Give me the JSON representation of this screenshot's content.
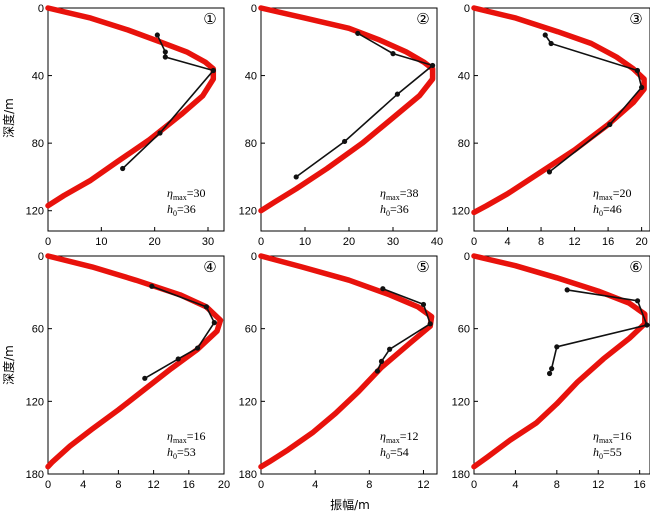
{
  "figure": {
    "y_axis_title": "深度/m",
    "x_axis_title": "振幅/m"
  },
  "chart_data": [
    {
      "type": "line",
      "panel_marker": "①",
      "xlim": [
        0,
        33
      ],
      "ylim": [
        0,
        132
      ],
      "y_inverted": true,
      "xticks": [
        "0",
        "10",
        "20",
        "30"
      ],
      "yticks": [
        "0",
        "40",
        "80",
        "120"
      ],
      "model_curve": {
        "color": "#e8120c",
        "points": [
          [
            0,
            0
          ],
          [
            8,
            6
          ],
          [
            15,
            13
          ],
          [
            21,
            20
          ],
          [
            26,
            26
          ],
          [
            29.5,
            32
          ],
          [
            31,
            36
          ],
          [
            31,
            42
          ],
          [
            29,
            52
          ],
          [
            25,
            63
          ],
          [
            19,
            78
          ],
          [
            13,
            91
          ],
          [
            8,
            102
          ],
          [
            3,
            111
          ],
          [
            0,
            117
          ]
        ]
      },
      "observed": {
        "color": "#111111",
        "points": [
          [
            20.5,
            16
          ],
          [
            22,
            26
          ],
          [
            22,
            29
          ],
          [
            31,
            37
          ],
          [
            21,
            74
          ],
          [
            14,
            95
          ]
        ]
      },
      "annotation": {
        "eta_symbol": "η",
        "eta_sub": "max",
        "eta_value": "=30",
        "h_symbol": "h",
        "h_sub": "0",
        "h_value": "=36"
      }
    },
    {
      "type": "line",
      "panel_marker": "②",
      "xlim": [
        0,
        40
      ],
      "ylim": [
        0,
        132
      ],
      "y_inverted": true,
      "xticks": [
        "0",
        "10",
        "20",
        "30",
        "40"
      ],
      "yticks": [
        "0",
        "40",
        "80",
        "120"
      ],
      "model_curve": {
        "color": "#e8120c",
        "points": [
          [
            0,
            0
          ],
          [
            10,
            6
          ],
          [
            20,
            12
          ],
          [
            27,
            19
          ],
          [
            33,
            26
          ],
          [
            37,
            32
          ],
          [
            39,
            36
          ],
          [
            39,
            42
          ],
          [
            36,
            52
          ],
          [
            30,
            65
          ],
          [
            23,
            80
          ],
          [
            15,
            95
          ],
          [
            8,
            107
          ],
          [
            3,
            115
          ],
          [
            0,
            120
          ]
        ]
      },
      "observed": {
        "color": "#111111",
        "points": [
          [
            22,
            15
          ],
          [
            30,
            27
          ],
          [
            39,
            34
          ],
          [
            31,
            51
          ],
          [
            19,
            79
          ],
          [
            8,
            100
          ]
        ]
      },
      "annotation": {
        "eta_symbol": "η",
        "eta_sub": "max",
        "eta_value": "=38",
        "h_symbol": "h",
        "h_sub": "0",
        "h_value": "=36"
      }
    },
    {
      "type": "line",
      "panel_marker": "③",
      "xlim": [
        0,
        21
      ],
      "ylim": [
        0,
        132
      ],
      "y_inverted": true,
      "xticks": [
        "0",
        "4",
        "8",
        "12",
        "16",
        "20"
      ],
      "yticks": [
        "0",
        "40",
        "80",
        "120"
      ],
      "model_curve": {
        "color": "#e8120c",
        "points": [
          [
            0,
            0
          ],
          [
            5,
            6
          ],
          [
            10,
            14
          ],
          [
            14,
            21
          ],
          [
            17,
            29
          ],
          [
            19,
            36
          ],
          [
            20.3,
            42
          ],
          [
            20.3,
            48
          ],
          [
            19,
            56
          ],
          [
            16,
            69
          ],
          [
            12,
            84
          ],
          [
            8,
            97
          ],
          [
            4,
            110
          ],
          [
            1.5,
            117
          ],
          [
            0,
            121
          ]
        ]
      },
      "observed": {
        "color": "#111111",
        "points": [
          [
            8.5,
            16
          ],
          [
            9.2,
            21
          ],
          [
            19.5,
            37
          ],
          [
            20,
            47
          ],
          [
            16.2,
            69
          ],
          [
            9,
            97
          ]
        ]
      },
      "annotation": {
        "eta_symbol": "η",
        "eta_sub": "max",
        "eta_value": "=20",
        "h_symbol": "h",
        "h_sub": "0",
        "h_value": "=46"
      }
    },
    {
      "type": "line",
      "panel_marker": "④",
      "xlim": [
        0,
        20
      ],
      "ylim": [
        0,
        180
      ],
      "y_inverted": true,
      "xticks": [
        "0",
        "4",
        "8",
        "12",
        "16",
        "20"
      ],
      "yticks": [
        "0",
        "60",
        "120",
        "180"
      ],
      "model_curve": {
        "color": "#e8120c",
        "points": [
          [
            0,
            0
          ],
          [
            5,
            9
          ],
          [
            10,
            20
          ],
          [
            15,
            32
          ],
          [
            18,
            42
          ],
          [
            19.6,
            53
          ],
          [
            19.2,
            62
          ],
          [
            17,
            77
          ],
          [
            14,
            93
          ],
          [
            11,
            110
          ],
          [
            8,
            127
          ],
          [
            5,
            143
          ],
          [
            2.5,
            157
          ],
          [
            0.5,
            170
          ],
          [
            0,
            174
          ]
        ]
      },
      "observed": {
        "color": "#111111",
        "points": [
          [
            11.8,
            25
          ],
          [
            18,
            42
          ],
          [
            18.9,
            55
          ],
          [
            17,
            76
          ],
          [
            14.8,
            85
          ],
          [
            11,
            101
          ]
        ]
      },
      "annotation": {
        "eta_symbol": "η",
        "eta_sub": "max",
        "eta_value": "=16",
        "h_symbol": "h",
        "h_sub": "0",
        "h_value": "=53"
      }
    },
    {
      "type": "line",
      "panel_marker": "⑤",
      "xlim": [
        0,
        13
      ],
      "ylim": [
        0,
        180
      ],
      "y_inverted": true,
      "xticks": [
        "0",
        "4",
        "8",
        "12"
      ],
      "yticks": [
        "0",
        "60",
        "120",
        "180"
      ],
      "model_curve": {
        "color": "#e8120c",
        "points": [
          [
            0,
            0
          ],
          [
            3,
            9
          ],
          [
            6.5,
            20
          ],
          [
            9.5,
            32
          ],
          [
            11.6,
            42
          ],
          [
            12.6,
            50
          ],
          [
            12.5,
            58
          ],
          [
            11,
            72
          ],
          [
            8.9,
            92
          ],
          [
            7.2,
            112
          ],
          [
            5.5,
            130
          ],
          [
            3.8,
            146
          ],
          [
            2,
            160
          ],
          [
            0.6,
            170
          ],
          [
            0,
            174
          ]
        ]
      },
      "observed": {
        "color": "#111111",
        "points": [
          [
            9,
            27
          ],
          [
            12,
            40
          ],
          [
            12.5,
            56
          ],
          [
            9.5,
            77
          ],
          [
            8.9,
            87
          ],
          [
            8.6,
            95
          ]
        ]
      },
      "annotation": {
        "eta_symbol": "η",
        "eta_sub": "max",
        "eta_value": "=12",
        "h_symbol": "h",
        "h_sub": "0",
        "h_value": "=54"
      }
    },
    {
      "type": "line",
      "panel_marker": "⑥",
      "xlim": [
        0,
        17
      ],
      "ylim": [
        0,
        180
      ],
      "y_inverted": true,
      "xticks": [
        "0",
        "4",
        "8",
        "12",
        "16"
      ],
      "yticks": [
        "0",
        "60",
        "120",
        "180"
      ],
      "model_curve": {
        "color": "#e8120c",
        "points": [
          [
            0,
            0
          ],
          [
            4,
            8
          ],
          [
            8,
            18
          ],
          [
            12,
            29
          ],
          [
            15,
            39
          ],
          [
            16.5,
            48
          ],
          [
            16.5,
            56
          ],
          [
            15,
            68
          ],
          [
            12.5,
            85
          ],
          [
            10,
            104
          ],
          [
            8,
            122
          ],
          [
            6,
            138
          ],
          [
            3.5,
            152
          ],
          [
            1.3,
            166
          ],
          [
            0,
            174
          ]
        ]
      },
      "observed": {
        "color": "#111111",
        "points": [
          [
            9,
            28
          ],
          [
            15.8,
            37
          ],
          [
            16.7,
            57
          ],
          [
            8,
            75
          ],
          [
            7.5,
            93
          ],
          [
            7.3,
            97
          ]
        ]
      },
      "annotation": {
        "eta_symbol": "η",
        "eta_sub": "max",
        "eta_value": "=16",
        "h_symbol": "h",
        "h_sub": "0",
        "h_value": "=55"
      }
    }
  ]
}
